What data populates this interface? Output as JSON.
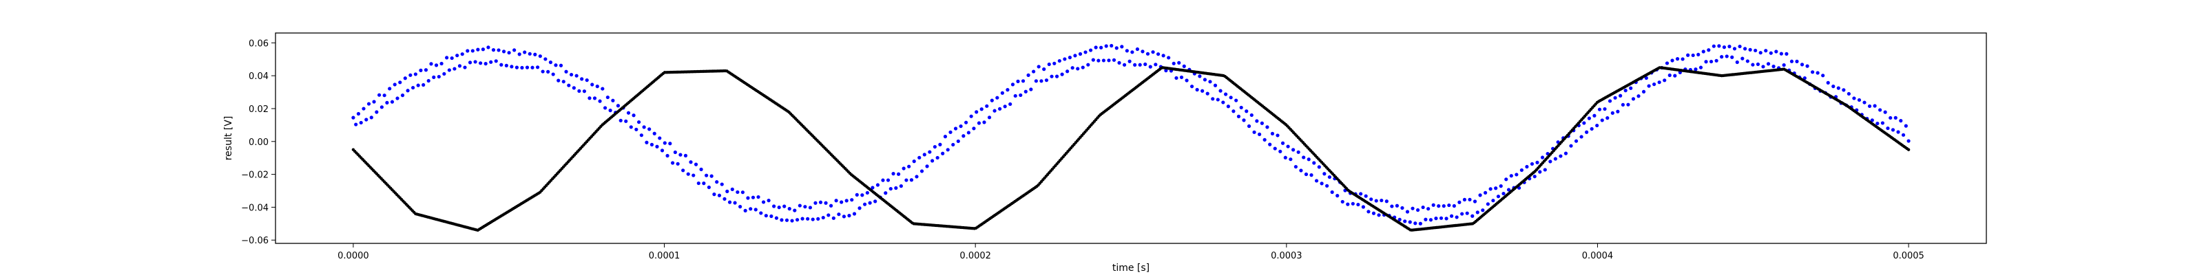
{
  "chart_data": {
    "type": "scatter",
    "title": "",
    "xlabel": "time [s]",
    "ylabel": "result [V]",
    "xlim": [
      -2.5e-05,
      0.000525
    ],
    "ylim": [
      -0.062,
      0.066
    ],
    "xticks": [
      0,
      0.0001,
      0.0002,
      0.0003,
      0.0004,
      0.0005
    ],
    "xtick_labels": [
      "0.0000",
      "0.0001",
      "0.0002",
      "0.0003",
      "0.0004",
      "0.0005"
    ],
    "yticks": [
      -0.06,
      -0.04,
      -0.02,
      0.0,
      0.02,
      0.04,
      0.06
    ],
    "ytick_labels": [
      "−0.06",
      "−0.04",
      "−0.02",
      "0.00",
      "0.02",
      "0.04",
      "0.06"
    ],
    "grid": false,
    "legend": "none",
    "series": [
      {
        "color": "#0000ff",
        "marker": "dots",
        "x": [
          0,
          2e-05,
          4e-05,
          6e-05,
          8e-05,
          0.0001,
          0.00012,
          0.00014,
          0.00016,
          0.00018,
          0.0002,
          0.00022,
          0.00024,
          0.00026,
          0.00028,
          0.0003,
          0.00032,
          0.00034,
          0.00036,
          0.00038,
          0.0004,
          0.00042,
          0.00044,
          0.00046,
          0.00048,
          0.0005
        ],
        "y": [
          0.012,
          0.038,
          0.053,
          0.049,
          0.027,
          -0.004,
          -0.033,
          -0.045,
          -0.04,
          -0.018,
          0.013,
          0.04,
          0.054,
          0.049,
          0.026,
          -0.006,
          -0.034,
          -0.046,
          -0.04,
          -0.017,
          0.014,
          0.041,
          0.055,
          0.049,
          0.026,
          0.005
        ],
        "band": 0.004
      },
      {
        "color": "#000000",
        "marker": "dots",
        "x": [
          0,
          2e-05,
          4e-05,
          6e-05,
          8e-05,
          0.0001,
          0.00012,
          0.00014,
          0.00016,
          0.00018,
          0.0002,
          0.00022,
          0.00024,
          0.00026,
          0.00028,
          0.0003,
          0.00032,
          0.00034,
          0.00036,
          0.00038,
          0.0004,
          0.00042,
          0.00044,
          0.00046,
          0.00048,
          0.0005
        ],
        "y": [
          -0.005,
          -0.044,
          -0.054,
          -0.031,
          0.01,
          0.042,
          0.043,
          0.018,
          -0.02,
          -0.05,
          -0.053,
          -0.027,
          0.016,
          0.045,
          0.04,
          0.01,
          -0.03,
          -0.054,
          -0.05,
          -0.018,
          0.024,
          0.045,
          0.04,
          0.044,
          0.022,
          -0.005
        ],
        "band": 0
      }
    ]
  }
}
